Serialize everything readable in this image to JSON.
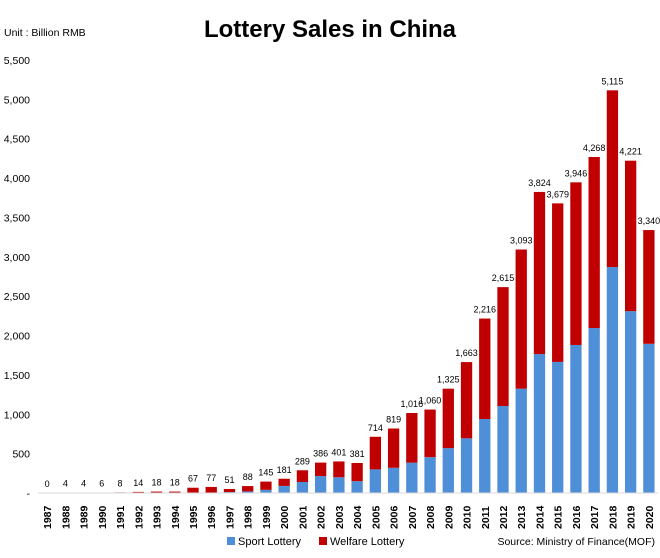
{
  "chart_data": {
    "type": "bar",
    "stacked": true,
    "title": "Lottery Sales in China",
    "unit_label": "Unit : Billion RMB",
    "source": "Source: Ministry of Finance(MOF)",
    "ylim": [
      0,
      5500
    ],
    "y_ticks": [
      "-",
      "500",
      "1,000",
      "1,500",
      "2,000",
      "2,500",
      "3,000",
      "3,500",
      "4,000",
      "4,500",
      "5,000",
      "5,500"
    ],
    "grid": false,
    "legend_position": "bottom",
    "categories": [
      "1987",
      "1988",
      "1989",
      "1990",
      "1991",
      "1992",
      "1993",
      "1994",
      "1995",
      "1996",
      "1997",
      "1998",
      "1999",
      "2000",
      "2001",
      "2002",
      "2003",
      "2004",
      "2005",
      "2006",
      "2007",
      "2008",
      "2009",
      "2010",
      "2011",
      "2012",
      "2013",
      "2014",
      "2015",
      "2016",
      "2017",
      "2018",
      "2019",
      "2020"
    ],
    "totals": [
      0,
      4,
      4,
      6,
      8,
      14,
      18,
      18,
      67,
      77,
      51,
      88,
      145,
      181,
      289,
      386,
      401,
      381,
      714,
      819,
      1016,
      1060,
      1325,
      1663,
      2216,
      2615,
      3093,
      3824,
      3679,
      3946,
      4268,
      5115,
      4221,
      3340
    ],
    "total_labels": [
      "0",
      "4",
      "4",
      "6",
      "8",
      "14",
      "18",
      "18",
      "67",
      "77",
      "51",
      "88",
      "145",
      "181",
      "289",
      "386",
      "401",
      "381",
      "714",
      "819",
      "1,016",
      "1,060",
      "1,325",
      "1,663",
      "2,216",
      "2,615",
      "3,093",
      "3,824",
      "3,679",
      "3,946",
      "4,268",
      "5,115",
      "4,221",
      "3,340"
    ],
    "series": [
      {
        "name": "Sport Lottery",
        "color": "#4f8fd8",
        "values": [
          0,
          0,
          0,
          0,
          0,
          0,
          0,
          0,
          0,
          0,
          12,
          20,
          40,
          90,
          140,
          215,
          200,
          150,
          300,
          320,
          385,
          455,
          570,
          695,
          940,
          1105,
          1325,
          1765,
          1665,
          1880,
          2095,
          2870,
          2310,
          1895
        ]
      },
      {
        "name": "Welfare Lottery",
        "color": "#c00000",
        "values": [
          0,
          4,
          4,
          6,
          8,
          14,
          18,
          18,
          67,
          77,
          39,
          68,
          105,
          91,
          149,
          171,
          201,
          231,
          414,
          499,
          631,
          605,
          755,
          968,
          1276,
          1510,
          1768,
          2059,
          2014,
          2066,
          2173,
          2245,
          1911,
          1445
        ]
      }
    ]
  }
}
